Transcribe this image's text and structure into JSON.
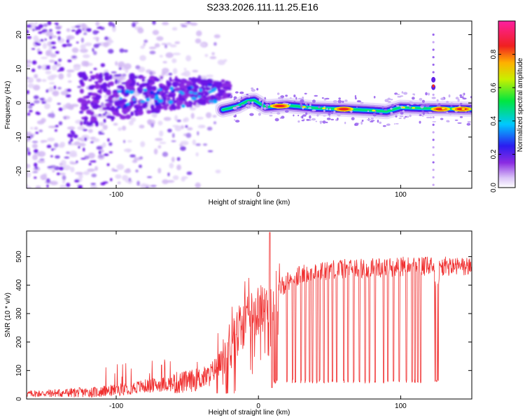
{
  "title": "S233.2026.111.11.25.E16",
  "chart_data": [
    {
      "type": "heatmap",
      "name": "spectrogram",
      "xlabel": "Height of straight line (km)",
      "ylabel": "Frequency (Hz)",
      "xlim": [
        -163,
        150
      ],
      "ylim": [
        -25,
        24
      ],
      "xticks": [
        -100,
        0,
        100
      ],
      "xtick_labels": [
        "-100",
        "0",
        "100"
      ],
      "yticks": [
        -20,
        -10,
        0,
        10,
        20
      ],
      "ytick_labels": [
        "-20",
        "-10",
        "0",
        "10",
        "20"
      ],
      "colorbar": {
        "label": "Normalized spectral amplitude",
        "range": [
          0,
          1
        ],
        "ticks": [
          0.0,
          0.2,
          0.4,
          0.6,
          0.8
        ],
        "tick_labels": [
          "0.0",
          "0.2",
          "0.4",
          "0.6",
          "0.8"
        ],
        "colors": [
          "#ffffff",
          "#c9a8f5",
          "#7a1fe8",
          "#1010f0",
          "#00c8ff",
          "#00e640",
          "#f0e600",
          "#ff7a00",
          "#f00020",
          "#ff2a90"
        ]
      },
      "ridge": [
        {
          "x": -25,
          "f": -2.0
        },
        {
          "x": -15,
          "f": -1.0
        },
        {
          "x": -8,
          "f": 0.5
        },
        {
          "x": -3,
          "f": 0.8
        },
        {
          "x": 5,
          "f": -1.2
        },
        {
          "x": 20,
          "f": -0.7
        },
        {
          "x": 40,
          "f": -1.5
        },
        {
          "x": 60,
          "f": -1.8
        },
        {
          "x": 80,
          "f": -2.2
        },
        {
          "x": 90,
          "f": -2.5
        },
        {
          "x": 100,
          "f": -1.3
        },
        {
          "x": 118,
          "f": -1.6
        },
        {
          "x": 150,
          "f": -1.8
        }
      ],
      "hotspots": [
        {
          "x": 15,
          "f": -0.9
        },
        {
          "x": 60,
          "f": -1.8
        },
        {
          "x": 128,
          "f": -1.8
        },
        {
          "x": 143,
          "f": -1.8
        }
      ],
      "spike_x": 123
    },
    {
      "type": "line",
      "name": "snr",
      "xlabel": "Height of straight line (km)",
      "ylabel": "SNR (10 * v/v)",
      "xlim": [
        -163,
        150
      ],
      "ylim": [
        0,
        590
      ],
      "xticks": [
        -100,
        0,
        100
      ],
      "xtick_labels": [
        "-100",
        "0",
        "100"
      ],
      "yticks": [
        0,
        100,
        200,
        300,
        400,
        500
      ],
      "ytick_labels": [
        "0",
        "100",
        "200",
        "300",
        "400",
        "500"
      ],
      "color": "#f03030",
      "trend": [
        {
          "x": -163,
          "y": 18
        },
        {
          "x": -110,
          "y": 25
        },
        {
          "x": -80,
          "y": 45
        },
        {
          "x": -50,
          "y": 60
        },
        {
          "x": -35,
          "y": 80
        },
        {
          "x": -25,
          "y": 140
        },
        {
          "x": -15,
          "y": 230
        },
        {
          "x": -5,
          "y": 290
        },
        {
          "x": 5,
          "y": 330
        },
        {
          "x": 15,
          "y": 390
        },
        {
          "x": 25,
          "y": 430
        },
        {
          "x": 50,
          "y": 455
        },
        {
          "x": 100,
          "y": 465
        },
        {
          "x": 150,
          "y": 465
        }
      ],
      "dropouts": [
        11,
        12,
        13,
        20,
        24,
        26,
        30,
        33,
        36,
        38,
        41,
        43,
        46,
        49,
        52,
        55,
        60,
        63,
        67,
        71,
        75,
        78,
        82,
        88,
        91,
        95,
        99,
        104,
        108,
        110,
        112,
        114
      ],
      "dip_region": [
        124,
        127
      ],
      "peak": {
        "x": 8,
        "y": 585
      }
    }
  ]
}
